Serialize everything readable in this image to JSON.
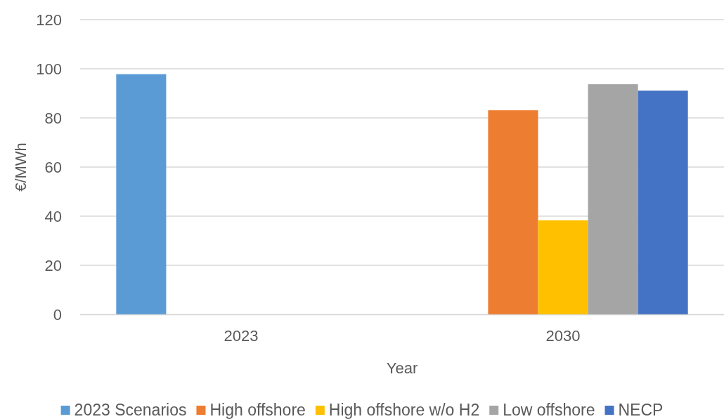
{
  "chart_data": {
    "type": "bar",
    "xlabel": "Year",
    "ylabel": "€/MWh",
    "categories": [
      "2023",
      "2030"
    ],
    "series": [
      {
        "name": "2023 Scenarios",
        "color": "#5b9bd5",
        "values": [
          97.8,
          null
        ]
      },
      {
        "name": "High offshore",
        "color": "#ed7d31",
        "values": [
          null,
          83.1
        ]
      },
      {
        "name": "High offshore w/o H2",
        "color": "#ffc000",
        "values": [
          null,
          38.3
        ]
      },
      {
        "name": "Low offshore",
        "color": "#a5a5a5",
        "values": [
          null,
          93.7
        ]
      },
      {
        "name": "NECP",
        "color": "#4472c4",
        "values": [
          null,
          91.1
        ]
      }
    ],
    "ylim": [
      0,
      120
    ],
    "yticks": [
      0,
      20,
      40,
      60,
      80,
      100,
      120
    ],
    "grid": "y",
    "legend": "bottom"
  }
}
